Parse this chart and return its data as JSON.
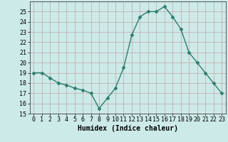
{
  "x": [
    0,
    1,
    2,
    3,
    4,
    5,
    6,
    7,
    8,
    9,
    10,
    11,
    12,
    13,
    14,
    15,
    16,
    17,
    18,
    19,
    20,
    21,
    22,
    23
  ],
  "y": [
    19,
    19,
    18.5,
    18,
    17.8,
    17.5,
    17.3,
    17.0,
    15.5,
    16.5,
    17.5,
    19.5,
    22.7,
    24.5,
    25.0,
    25.0,
    25.5,
    24.5,
    23.3,
    21.0,
    20.0,
    19.0,
    18.0,
    17.0
  ],
  "line_color": "#2e7d6e",
  "marker": "D",
  "marker_size": 2.5,
  "bg_color": "#cceae8",
  "grid_color": "#c0a8a8",
  "xlabel": "Humidex (Indice chaleur)",
  "xlim": [
    -0.5,
    23.5
  ],
  "ylim": [
    15,
    26
  ],
  "yticks": [
    15,
    16,
    17,
    18,
    19,
    20,
    21,
    22,
    23,
    24,
    25
  ],
  "xticks": [
    0,
    1,
    2,
    3,
    4,
    5,
    6,
    7,
    8,
    9,
    10,
    11,
    12,
    13,
    14,
    15,
    16,
    17,
    18,
    19,
    20,
    21,
    22,
    23
  ],
  "xlabel_fontsize": 7,
  "tick_fontsize": 6,
  "line_width": 1.0
}
